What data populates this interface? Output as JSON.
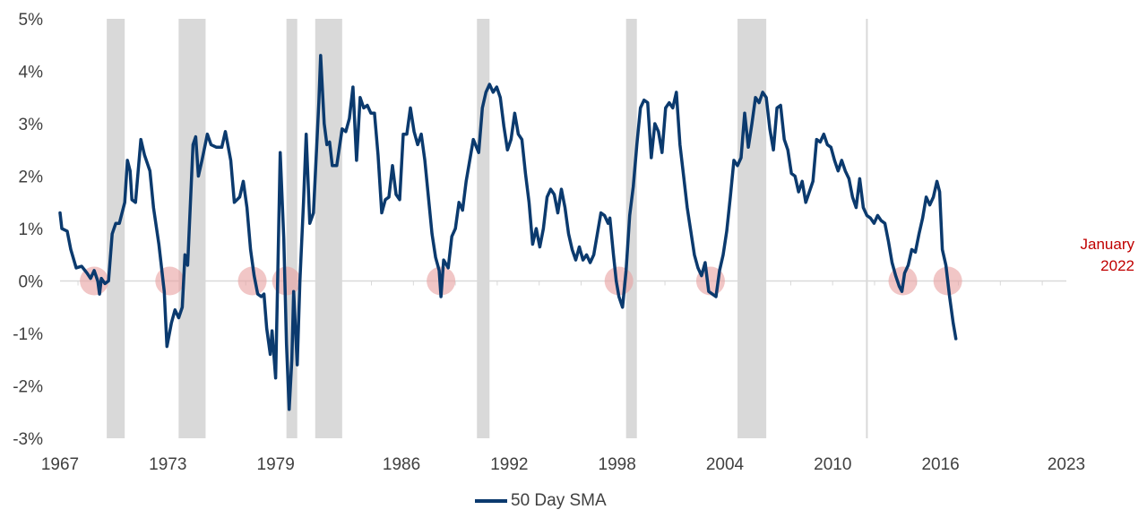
{
  "chart_data": {
    "type": "line",
    "series": [
      {
        "name": "50 Day SMA",
        "color": "#0b3a6e"
      }
    ],
    "x_range": [
      1967,
      2023
    ],
    "ylim": [
      -3,
      5
    ],
    "y_ticks": [
      {
        "value": 5,
        "label": "5%"
      },
      {
        "value": 4,
        "label": "4%"
      },
      {
        "value": 3,
        "label": "3%"
      },
      {
        "value": 2,
        "label": "2%"
      },
      {
        "value": 1,
        "label": "1%"
      },
      {
        "value": 0,
        "label": "0%"
      },
      {
        "value": -1,
        "label": "-1%"
      },
      {
        "value": -2,
        "label": "-2%"
      },
      {
        "value": -3,
        "label": "-3%"
      }
    ],
    "x_ticks": [
      {
        "value": 1967,
        "label": "1967"
      },
      {
        "value": 1973,
        "label": "1973"
      },
      {
        "value": 1979,
        "label": "1979"
      },
      {
        "value": 1986,
        "label": "1986"
      },
      {
        "value": 1992,
        "label": "1992"
      },
      {
        "value": 1998,
        "label": "1998"
      },
      {
        "value": 2004,
        "label": "2004"
      },
      {
        "value": 2010,
        "label": "2010"
      },
      {
        "value": 2016,
        "label": "2016"
      },
      {
        "value": 2023,
        "label": "2023"
      }
    ],
    "points": [
      [
        1967.0,
        1.3
      ],
      [
        1967.1,
        1.0
      ],
      [
        1967.4,
        0.95
      ],
      [
        1967.6,
        0.6
      ],
      [
        1967.9,
        0.25
      ],
      [
        1968.2,
        0.28
      ],
      [
        1968.5,
        0.15
      ],
      [
        1968.7,
        0.05
      ],
      [
        1968.9,
        0.2
      ],
      [
        1969.1,
        0.0
      ],
      [
        1969.2,
        -0.25
      ],
      [
        1969.3,
        0.05
      ],
      [
        1969.5,
        -0.05
      ],
      [
        1969.7,
        0.0
      ],
      [
        1969.9,
        0.9
      ],
      [
        1970.1,
        1.1
      ],
      [
        1970.3,
        1.1
      ],
      [
        1970.6,
        1.5
      ],
      [
        1970.75,
        2.3
      ],
      [
        1970.9,
        2.1
      ],
      [
        1971.0,
        1.55
      ],
      [
        1971.2,
        1.5
      ],
      [
        1971.5,
        2.7
      ],
      [
        1971.7,
        2.4
      ],
      [
        1972.0,
        2.1
      ],
      [
        1972.2,
        1.4
      ],
      [
        1972.5,
        0.7
      ],
      [
        1972.8,
        -0.2
      ],
      [
        1972.95,
        -1.25
      ],
      [
        1973.2,
        -0.8
      ],
      [
        1973.4,
        -0.55
      ],
      [
        1973.6,
        -0.7
      ],
      [
        1973.8,
        -0.5
      ],
      [
        1973.95,
        0.5
      ],
      [
        1974.1,
        0.3
      ],
      [
        1974.4,
        2.6
      ],
      [
        1974.55,
        2.75
      ],
      [
        1974.7,
        2.0
      ],
      [
        1974.9,
        2.3
      ],
      [
        1975.2,
        2.8
      ],
      [
        1975.4,
        2.6
      ],
      [
        1975.7,
        2.55
      ],
      [
        1976.0,
        2.55
      ],
      [
        1976.2,
        2.85
      ],
      [
        1976.5,
        2.3
      ],
      [
        1976.7,
        1.5
      ],
      [
        1977.0,
        1.6
      ],
      [
        1977.2,
        1.9
      ],
      [
        1977.4,
        1.4
      ],
      [
        1977.6,
        0.6
      ],
      [
        1977.8,
        0.1
      ],
      [
        1978.0,
        -0.25
      ],
      [
        1978.2,
        -0.3
      ],
      [
        1978.35,
        -0.25
      ],
      [
        1978.5,
        -0.9
      ],
      [
        1978.7,
        -1.4
      ],
      [
        1978.8,
        -0.95
      ],
      [
        1979.0,
        -1.85
      ],
      [
        1979.1,
        -0.2
      ],
      [
        1979.25,
        2.45
      ],
      [
        1979.45,
        0.8
      ],
      [
        1979.6,
        -1.2
      ],
      [
        1979.75,
        -2.45
      ],
      [
        1979.9,
        -1.5
      ],
      [
        1980.0,
        -0.2
      ],
      [
        1980.2,
        -1.6
      ],
      [
        1980.35,
        0.0
      ],
      [
        1980.55,
        1.5
      ],
      [
        1980.7,
        2.8
      ],
      [
        1980.9,
        1.1
      ],
      [
        1981.1,
        1.3
      ],
      [
        1981.4,
        3.4
      ],
      [
        1981.5,
        4.3
      ],
      [
        1981.7,
        3.0
      ],
      [
        1981.85,
        2.6
      ],
      [
        1982.0,
        2.65
      ],
      [
        1982.15,
        2.2
      ],
      [
        1982.4,
        2.2
      ],
      [
        1982.7,
        2.9
      ],
      [
        1982.9,
        2.85
      ],
      [
        1983.1,
        3.1
      ],
      [
        1983.3,
        3.7
      ],
      [
        1983.5,
        2.3
      ],
      [
        1983.7,
        3.5
      ],
      [
        1983.9,
        3.3
      ],
      [
        1984.1,
        3.35
      ],
      [
        1984.3,
        3.2
      ],
      [
        1984.5,
        3.2
      ],
      [
        1984.7,
        2.4
      ],
      [
        1984.9,
        1.3
      ],
      [
        1985.1,
        1.55
      ],
      [
        1985.3,
        1.6
      ],
      [
        1985.5,
        2.2
      ],
      [
        1985.7,
        1.65
      ],
      [
        1985.9,
        1.55
      ],
      [
        1986.1,
        2.8
      ],
      [
        1986.3,
        2.8
      ],
      [
        1986.5,
        3.3
      ],
      [
        1986.7,
        2.85
      ],
      [
        1986.9,
        2.6
      ],
      [
        1987.1,
        2.8
      ],
      [
        1987.3,
        2.3
      ],
      [
        1987.5,
        1.6
      ],
      [
        1987.7,
        0.9
      ],
      [
        1987.9,
        0.45
      ],
      [
        1988.1,
        0.2
      ],
      [
        1988.2,
        -0.3
      ],
      [
        1988.35,
        0.4
      ],
      [
        1988.6,
        0.25
      ],
      [
        1988.8,
        0.85
      ],
      [
        1989.0,
        1.0
      ],
      [
        1989.2,
        1.5
      ],
      [
        1989.4,
        1.35
      ],
      [
        1989.6,
        1.9
      ],
      [
        1989.8,
        2.3
      ],
      [
        1990.0,
        2.7
      ],
      [
        1990.3,
        2.45
      ],
      [
        1990.5,
        3.3
      ],
      [
        1990.7,
        3.6
      ],
      [
        1990.9,
        3.75
      ],
      [
        1991.1,
        3.6
      ],
      [
        1991.3,
        3.7
      ],
      [
        1991.5,
        3.5
      ],
      [
        1991.7,
        2.95
      ],
      [
        1991.9,
        2.5
      ],
      [
        1992.1,
        2.7
      ],
      [
        1992.3,
        3.2
      ],
      [
        1992.5,
        2.8
      ],
      [
        1992.7,
        2.7
      ],
      [
        1992.9,
        2.05
      ],
      [
        1993.1,
        1.5
      ],
      [
        1993.3,
        0.7
      ],
      [
        1993.5,
        1.0
      ],
      [
        1993.7,
        0.65
      ],
      [
        1993.9,
        1.0
      ],
      [
        1994.1,
        1.6
      ],
      [
        1994.3,
        1.75
      ],
      [
        1994.5,
        1.65
      ],
      [
        1994.7,
        1.3
      ],
      [
        1994.9,
        1.75
      ],
      [
        1995.1,
        1.4
      ],
      [
        1995.3,
        0.9
      ],
      [
        1995.5,
        0.6
      ],
      [
        1995.7,
        0.4
      ],
      [
        1995.9,
        0.65
      ],
      [
        1996.1,
        0.4
      ],
      [
        1996.3,
        0.5
      ],
      [
        1996.5,
        0.35
      ],
      [
        1996.7,
        0.5
      ],
      [
        1996.9,
        0.9
      ],
      [
        1997.1,
        1.3
      ],
      [
        1997.3,
        1.25
      ],
      [
        1997.5,
        1.1
      ],
      [
        1997.6,
        1.2
      ],
      [
        1997.8,
        0.5
      ],
      [
        1997.95,
        0.0
      ],
      [
        1998.1,
        -0.3
      ],
      [
        1998.3,
        -0.5
      ],
      [
        1998.5,
        0.2
      ],
      [
        1998.7,
        1.25
      ],
      [
        1998.9,
        1.8
      ],
      [
        1999.1,
        2.6
      ],
      [
        1999.3,
        3.3
      ],
      [
        1999.5,
        3.45
      ],
      [
        1999.7,
        3.4
      ],
      [
        1999.9,
        2.35
      ],
      [
        2000.1,
        3.0
      ],
      [
        2000.3,
        2.85
      ],
      [
        2000.5,
        2.45
      ],
      [
        2000.7,
        3.3
      ],
      [
        2000.9,
        3.4
      ],
      [
        2001.1,
        3.3
      ],
      [
        2001.3,
        3.6
      ],
      [
        2001.5,
        2.6
      ],
      [
        2001.7,
        2.0
      ],
      [
        2001.9,
        1.4
      ],
      [
        2002.1,
        0.95
      ],
      [
        2002.3,
        0.5
      ],
      [
        2002.5,
        0.25
      ],
      [
        2002.7,
        0.1
      ],
      [
        2002.9,
        0.35
      ],
      [
        2003.1,
        -0.2
      ],
      [
        2003.3,
        -0.25
      ],
      [
        2003.5,
        -0.3
      ],
      [
        2003.7,
        0.2
      ],
      [
        2003.9,
        0.5
      ],
      [
        2004.1,
        0.95
      ],
      [
        2004.3,
        1.6
      ],
      [
        2004.5,
        2.3
      ],
      [
        2004.7,
        2.2
      ],
      [
        2004.9,
        2.35
      ],
      [
        2005.1,
        3.2
      ],
      [
        2005.3,
        2.55
      ],
      [
        2005.5,
        3.0
      ],
      [
        2005.7,
        3.5
      ],
      [
        2005.9,
        3.4
      ],
      [
        2006.1,
        3.6
      ],
      [
        2006.3,
        3.5
      ],
      [
        2006.5,
        2.9
      ],
      [
        2006.7,
        2.5
      ],
      [
        2006.9,
        3.3
      ],
      [
        2007.1,
        3.35
      ],
      [
        2007.3,
        2.7
      ],
      [
        2007.5,
        2.5
      ],
      [
        2007.7,
        2.05
      ],
      [
        2007.9,
        2.0
      ],
      [
        2008.1,
        1.7
      ],
      [
        2008.3,
        1.9
      ],
      [
        2008.5,
        1.5
      ],
      [
        2008.7,
        1.7
      ],
      [
        2008.9,
        1.9
      ],
      [
        2009.1,
        2.7
      ],
      [
        2009.3,
        2.65
      ],
      [
        2009.5,
        2.8
      ],
      [
        2009.7,
        2.6
      ],
      [
        2009.9,
        2.55
      ],
      [
        2010.1,
        2.3
      ],
      [
        2010.3,
        2.1
      ],
      [
        2010.5,
        2.3
      ],
      [
        2010.7,
        2.1
      ],
      [
        2010.9,
        1.95
      ],
      [
        2011.1,
        1.6
      ],
      [
        2011.3,
        1.4
      ],
      [
        2011.5,
        1.95
      ],
      [
        2011.7,
        1.4
      ],
      [
        2011.9,
        1.25
      ],
      [
        2012.1,
        1.2
      ],
      [
        2012.3,
        1.1
      ],
      [
        2012.5,
        1.25
      ],
      [
        2012.7,
        1.15
      ],
      [
        2012.9,
        1.1
      ],
      [
        2013.1,
        0.75
      ],
      [
        2013.3,
        0.35
      ],
      [
        2013.5,
        0.1
      ],
      [
        2013.7,
        -0.1
      ],
      [
        2013.85,
        -0.2
      ],
      [
        2014.0,
        0.15
      ],
      [
        2014.2,
        0.3
      ],
      [
        2014.4,
        0.6
      ],
      [
        2014.6,
        0.55
      ],
      [
        2014.8,
        0.9
      ],
      [
        2015.0,
        1.2
      ],
      [
        2015.2,
        1.6
      ],
      [
        2015.4,
        1.45
      ],
      [
        2015.6,
        1.6
      ],
      [
        2015.8,
        1.9
      ],
      [
        2015.95,
        1.7
      ],
      [
        2016.1,
        0.6
      ],
      [
        2016.3,
        0.3
      ],
      [
        2016.5,
        -0.3
      ],
      [
        2016.7,
        -0.8
      ],
      [
        2016.8,
        -1.0
      ],
      [
        2016.85,
        -1.1
      ]
    ],
    "recessions": [
      [
        1969.6,
        1970.6
      ],
      [
        1973.6,
        1975.1
      ],
      [
        1979.6,
        1980.2
      ],
      [
        1981.2,
        1982.7
      ],
      [
        1990.2,
        1990.9
      ],
      [
        1998.5,
        1999.1
      ],
      [
        2004.7,
        2006.3
      ],
      [
        2011.85,
        2011.95
      ]
    ],
    "markers": [
      1968.9,
      1973.1,
      1977.7,
      1979.6,
      1988.2,
      1998.1,
      2003.2,
      2013.9,
      2016.4
    ],
    "annotation": {
      "line1": "January",
      "line2": "2022"
    },
    "legend": {
      "position": "bottom",
      "label": "50 Day SMA"
    },
    "colors": {
      "line": "#0b3a6e",
      "recession": "#d9d9d9",
      "marker": "#e8a0a0",
      "annotation": "#c00000",
      "zero_line": "#d9d9d9"
    }
  }
}
